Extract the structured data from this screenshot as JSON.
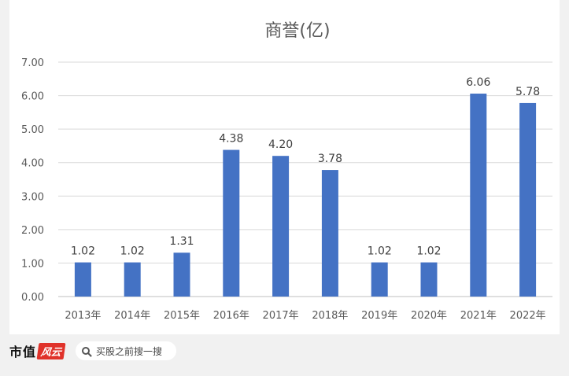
{
  "chart_data": {
    "type": "bar",
    "title": "商誉(亿)",
    "categories": [
      "2013年",
      "2014年",
      "2015年",
      "2016年",
      "2017年",
      "2018年",
      "2019年",
      "2020年",
      "2021年",
      "2022年"
    ],
    "values": [
      1.02,
      1.02,
      1.31,
      4.38,
      4.2,
      3.78,
      1.02,
      1.02,
      6.06,
      5.78
    ],
    "data_labels": [
      "1.02",
      "1.02",
      "1.31",
      "4.38",
      "4.20",
      "3.78",
      "1.02",
      "1.02",
      "6.06",
      "5.78"
    ],
    "y_ticks": [
      "0.00",
      "1.00",
      "2.00",
      "3.00",
      "4.00",
      "5.00",
      "6.00",
      "7.00"
    ],
    "ylim": [
      0,
      7
    ],
    "grid": true,
    "bar_color": "#4472c4",
    "xlabel": "",
    "ylabel": ""
  },
  "footer": {
    "logo_text": "市值",
    "logo_badge": "风云",
    "search_placeholder": "买股之前搜一搜",
    "search_icon": "search-icon"
  },
  "watermark": "市值风云"
}
